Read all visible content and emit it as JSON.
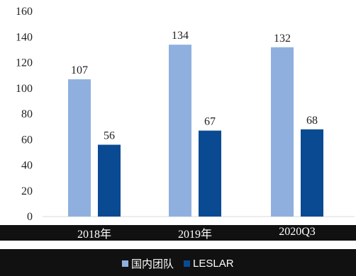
{
  "chart_data": {
    "type": "bar",
    "categories": [
      "2018年",
      "2019年",
      "2020Q3"
    ],
    "series": [
      {
        "name": "国内团队",
        "values": [
          107,
          134,
          132
        ],
        "color": "#8fb0df"
      },
      {
        "name": "LESLAR",
        "values": [
          56,
          67,
          68
        ],
        "color": "#0a4a93"
      }
    ],
    "ylim": [
      0,
      160
    ],
    "yticks": [
      0,
      20,
      40,
      60,
      80,
      100,
      120,
      140,
      160
    ],
    "grid": false,
    "legend_position": "bottom",
    "title": "",
    "xlabel": "",
    "ylabel": ""
  }
}
